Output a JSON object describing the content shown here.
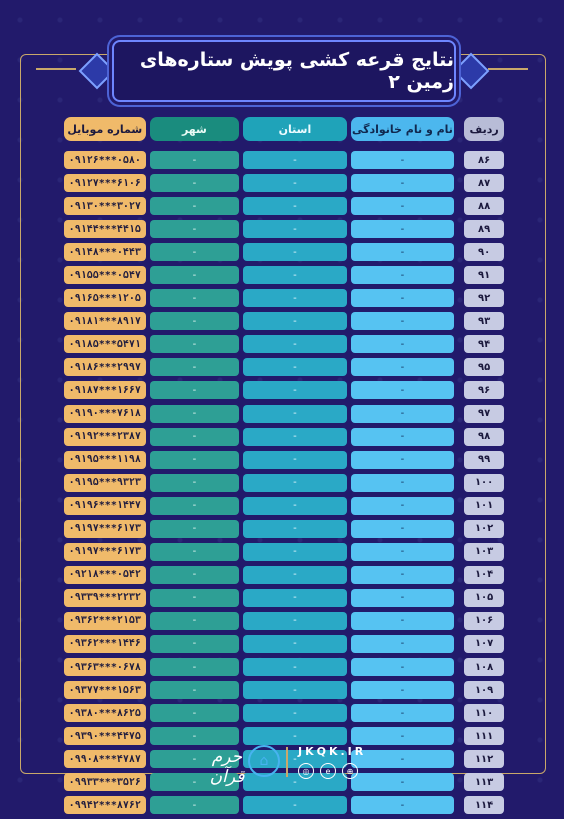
{
  "title": "نتایج قرعه کشی پویش ستاره‌های زمین ۲",
  "headers": {
    "row_num": "ردیف",
    "name": "نام و نام خانوادگی",
    "province": "استان",
    "city": "شهر",
    "mobile": "شماره موبایل"
  },
  "rows": [
    {
      "num": "۸۶",
      "name": "-",
      "province": "-",
      "city": "-",
      "mobile": "۰۹۱۲۶***۰۵۸۰"
    },
    {
      "num": "۸۷",
      "name": "-",
      "province": "-",
      "city": "-",
      "mobile": "۰۹۱۲۷***۶۱۰۶"
    },
    {
      "num": "۸۸",
      "name": "-",
      "province": "-",
      "city": "-",
      "mobile": "۰۹۱۳۰***۳۰۲۷"
    },
    {
      "num": "۸۹",
      "name": "-",
      "province": "-",
      "city": "-",
      "mobile": "۰۹۱۴۴***۴۴۱۵"
    },
    {
      "num": "۹۰",
      "name": "-",
      "province": "-",
      "city": "-",
      "mobile": "۰۹۱۴۸***۰۴۴۳"
    },
    {
      "num": "۹۱",
      "name": "-",
      "province": "-",
      "city": "-",
      "mobile": "۰۹۱۵۵***۰۵۴۷"
    },
    {
      "num": "۹۲",
      "name": "-",
      "province": "-",
      "city": "-",
      "mobile": "۰۹۱۶۵***۱۲۰۵"
    },
    {
      "num": "۹۳",
      "name": "-",
      "province": "-",
      "city": "-",
      "mobile": "۰۹۱۸۱***۸۹۱۷"
    },
    {
      "num": "۹۴",
      "name": "-",
      "province": "-",
      "city": "-",
      "mobile": "۰۹۱۸۵***۵۴۷۱"
    },
    {
      "num": "۹۵",
      "name": "-",
      "province": "-",
      "city": "-",
      "mobile": "۰۹۱۸۶***۲۹۹۷"
    },
    {
      "num": "۹۶",
      "name": "-",
      "province": "-",
      "city": "-",
      "mobile": "۰۹۱۸۷***۱۶۶۷"
    },
    {
      "num": "۹۷",
      "name": "-",
      "province": "-",
      "city": "-",
      "mobile": "۰۹۱۹۰***۷۶۱۸"
    },
    {
      "num": "۹۸",
      "name": "-",
      "province": "-",
      "city": "-",
      "mobile": "۰۹۱۹۲***۲۳۸۷"
    },
    {
      "num": "۹۹",
      "name": "-",
      "province": "-",
      "city": "-",
      "mobile": "۰۹۱۹۵***۱۱۹۸"
    },
    {
      "num": "۱۰۰",
      "name": "-",
      "province": "-",
      "city": "-",
      "mobile": "۰۹۱۹۵***۹۳۲۳"
    },
    {
      "num": "۱۰۱",
      "name": "-",
      "province": "-",
      "city": "-",
      "mobile": "۰۹۱۹۶***۱۴۴۷"
    },
    {
      "num": "۱۰۲",
      "name": "-",
      "province": "-",
      "city": "-",
      "mobile": "۰۹۱۹۷***۶۱۷۳"
    },
    {
      "num": "۱۰۳",
      "name": "-",
      "province": "-",
      "city": "-",
      "mobile": "۰۹۱۹۷***۶۱۷۳"
    },
    {
      "num": "۱۰۴",
      "name": "-",
      "province": "-",
      "city": "-",
      "mobile": "۰۹۲۱۸***۰۵۴۲"
    },
    {
      "num": "۱۰۵",
      "name": "-",
      "province": "-",
      "city": "-",
      "mobile": "۰۹۳۳۹***۲۲۳۲"
    },
    {
      "num": "۱۰۶",
      "name": "-",
      "province": "-",
      "city": "-",
      "mobile": "۰۹۳۶۲***۲۱۵۳"
    },
    {
      "num": "۱۰۷",
      "name": "-",
      "province": "-",
      "city": "-",
      "mobile": "۰۹۳۶۲***۱۴۴۶"
    },
    {
      "num": "۱۰۸",
      "name": "-",
      "province": "-",
      "city": "-",
      "mobile": "۰۹۳۶۳***۰۶۷۸"
    },
    {
      "num": "۱۰۹",
      "name": "-",
      "province": "-",
      "city": "-",
      "mobile": "۰۹۳۷۷***۱۵۶۳"
    },
    {
      "num": "۱۱۰",
      "name": "-",
      "province": "-",
      "city": "-",
      "mobile": "۰۹۳۸۰***۸۶۲۵"
    },
    {
      "num": "۱۱۱",
      "name": "-",
      "province": "-",
      "city": "-",
      "mobile": "۰۹۳۹۰***۴۴۷۵"
    },
    {
      "num": "۱۱۲",
      "name": "-",
      "province": "-",
      "city": "-",
      "mobile": "۰۹۹۰۸***۴۷۸۷"
    },
    {
      "num": "۱۱۳",
      "name": "-",
      "province": "-",
      "city": "-",
      "mobile": "۰۹۹۳۳***۳۵۲۶"
    },
    {
      "num": "۱۱۴",
      "name": "-",
      "province": "-",
      "city": "-",
      "mobile": "۰۹۹۴۲***۸۷۶۲"
    }
  ],
  "footer": {
    "url": "JKQK.IR",
    "brand_text": "حرم قرآن"
  },
  "colors": {
    "background": "#221a6b",
    "mobile": "#f0ba6a",
    "city": "#2e9f95",
    "province": "#2aa9c6",
    "name": "#56c3f2",
    "row_num": "#c7cbe3",
    "gold_frame": "#c9a86a"
  },
  "icons": {
    "instagram": "instagram-icon",
    "eitaa": "eitaa-icon",
    "website": "globe-icon",
    "logo": "brand-logo-icon"
  }
}
